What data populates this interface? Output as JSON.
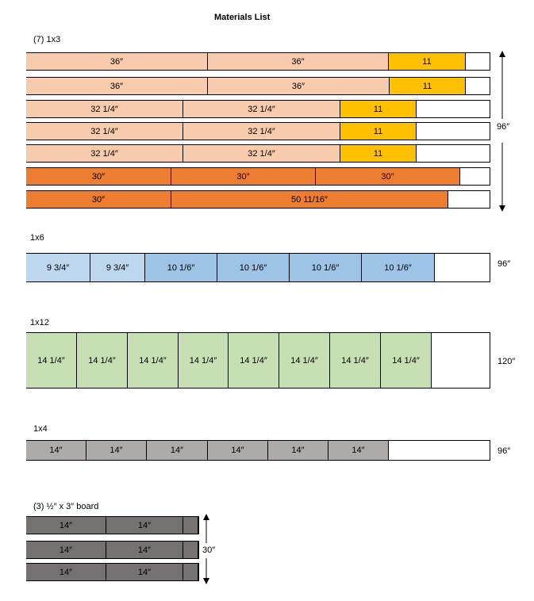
{
  "title": "Materials List",
  "groups": [
    {
      "label": "(7) 1x3",
      "length": "96″",
      "boards": [
        [
          "36″",
          "36″",
          "11"
        ],
        [
          "36″",
          "36″",
          "11"
        ],
        [
          "32 1/4″",
          "32 1/4″",
          "11"
        ],
        [
          "32 1/4″",
          "32 1/4″",
          "11"
        ],
        [
          "32 1/4″",
          "32 1/4″",
          "11"
        ],
        [
          "30″",
          "30″",
          "30″"
        ],
        [
          "30″",
          "50 11/16″"
        ]
      ]
    },
    {
      "label": "1x6",
      "length": "96″",
      "boards": [
        [
          "9 3/4″",
          "9 3/4″",
          "10 1/6″",
          "10 1/6″",
          "10 1/6″",
          "10 1/6″"
        ]
      ]
    },
    {
      "label": "1x12",
      "length": "120″",
      "boards": [
        [
          "14 1/4″",
          "14 1/4″",
          "14 1/4″",
          "14 1/4″",
          "14 1/4″",
          "14 1/4″",
          "14 1/4″",
          "14 1/4″"
        ]
      ]
    },
    {
      "label": "1x4",
      "length": "96″",
      "boards": [
        [
          "14″",
          "14″",
          "14″",
          "14″",
          "14″",
          "14″"
        ]
      ]
    },
    {
      "label": "(3) ½″ x 3″ board",
      "length": "30″",
      "boards": [
        [
          "14″",
          "14″"
        ],
        [
          "14″",
          "14″"
        ],
        [
          "14″",
          "14″"
        ]
      ]
    }
  ]
}
